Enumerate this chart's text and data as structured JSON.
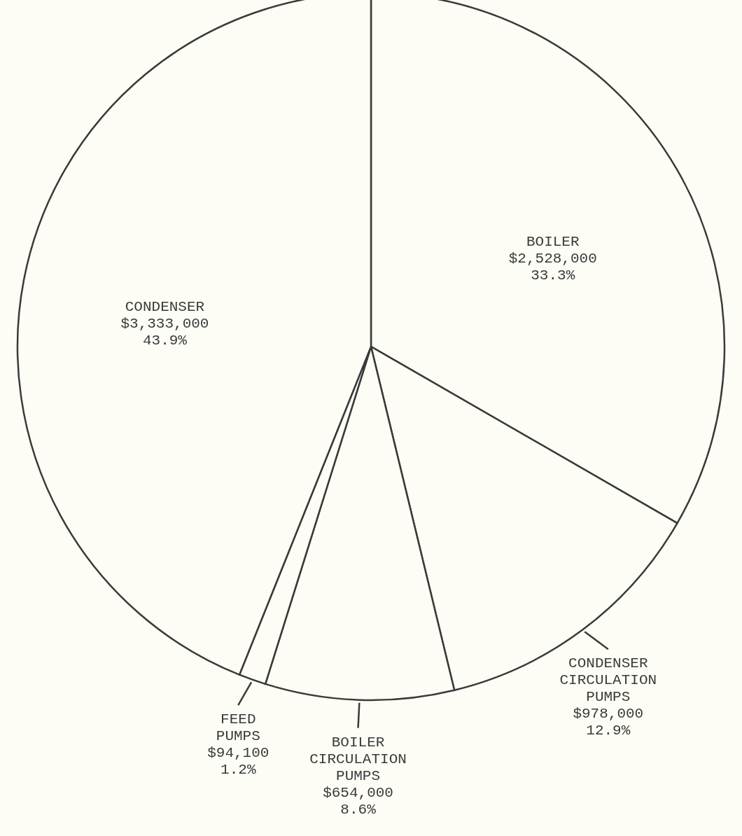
{
  "chart_data": {
    "type": "pie",
    "categories": [
      "BOILER",
      "CONDENSER\nCIRCULATION\nPUMPS",
      "BOILER\nCIRCULATION\nPUMPS",
      "FEED\nPUMPS",
      "CONDENSER"
    ],
    "values": [
      2528000,
      978000,
      654000,
      94100,
      3333000
    ],
    "colors": [
      "#fdfdf6",
      "#fdfdf6",
      "#fdfdf6",
      "#fdfdf6",
      "#fdfdf6"
    ],
    "value_labels": [
      "$2,528,000\n33.3%",
      "$978,000\n12.9%",
      "$654,000\n8.6%",
      "$94,100\n1.2%",
      "$3,333,000\n43.9%"
    ]
  }
}
